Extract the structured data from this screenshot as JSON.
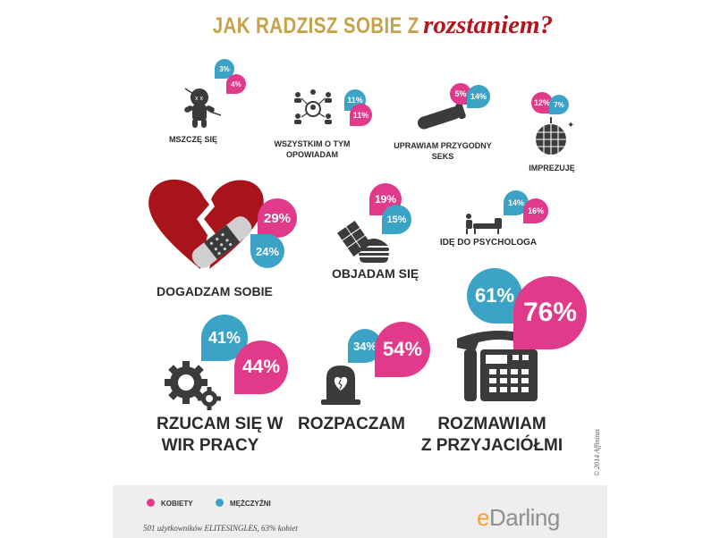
{
  "title": {
    "part1": "JAK RADZISZ SOBIE Z",
    "part2": "rozstaniem?"
  },
  "colors": {
    "women": "#e23a8a",
    "men": "#3ba3c6",
    "title_gold": "#c8a24a",
    "title_red": "#b3151c",
    "icon_dark": "#3b3b3b",
    "heart_red": "#a9141b"
  },
  "legend": {
    "women_label": "KOBIETY",
    "men_label": "MĘŻCZYŹNI"
  },
  "note": "501 użytkowników ELITESINGLES, 63% kobiet",
  "brand": {
    "e": "e",
    "rest": "Darling"
  },
  "copyright": "© 2014 Affinitas",
  "chart_data": {
    "type": "bar",
    "title": "JAK RADZISZ SOBIE Z rozstaniem?",
    "categories": [
      "MSZCZĘ SIĘ",
      "WSZYSTKIM O TYM OPOWIADAM",
      "UPRAWIAM PRZYGODNY SEKS",
      "IMPREZUJĘ",
      "DOGADZAM SOBIE",
      "OBJADAM SIĘ",
      "IDĘ DO PSYCHOLOGA",
      "RZUCAM SIĘ W WIR PRACY",
      "ROZPACZAM",
      "ROZMAWIAM Z PRZYJACIÓŁMI"
    ],
    "series": [
      {
        "name": "KOBIETY",
        "values": [
          4,
          11,
          5,
          12,
          29,
          19,
          16,
          44,
          54,
          76
        ]
      },
      {
        "name": "MĘŻCZYŹNI",
        "values": [
          3,
          11,
          14,
          7,
          24,
          15,
          14,
          41,
          34,
          61
        ]
      }
    ],
    "unit": "%"
  },
  "items": [
    {
      "label_lines": [
        "MSZCZĘ SIĘ"
      ],
      "women": "4%",
      "men": "3%",
      "icon": "voodoo-doll-icon"
    },
    {
      "label_lines": [
        "WSZYSTKIM O TYM",
        "OPOWIADAM"
      ],
      "women": "11%",
      "men": "11%",
      "icon": "people-network-icon"
    },
    {
      "label_lines": [
        "UPRAWIAM PRZYGODNY",
        "SEKS"
      ],
      "women": "5%",
      "men": "14%",
      "icon": "condom-icon"
    },
    {
      "label_lines": [
        "IMPREZUJĘ"
      ],
      "women": "12%",
      "men": "7%",
      "icon": "disco-ball-icon"
    },
    {
      "label_lines": [
        "DOGADZAM SOBIE"
      ],
      "women": "29%",
      "men": "24%",
      "icon": "broken-heart-icon"
    },
    {
      "label_lines": [
        "OBJADAM SIĘ"
      ],
      "women": "19%",
      "men": "15%",
      "icon": "burger-chocolate-icon"
    },
    {
      "label_lines": [
        "IDĘ DO PSYCHOLOGA"
      ],
      "women": "16%",
      "men": "14%",
      "icon": "therapy-couch-icon"
    },
    {
      "label_lines": [
        "RZUCAM SIĘ W",
        "WIR PRACY"
      ],
      "women": "44%",
      "men": "41%",
      "icon": "gears-icon"
    },
    {
      "label_lines": [
        "ROZPACZAM"
      ],
      "women": "54%",
      "men": "34%",
      "icon": "gravestone-icon"
    },
    {
      "label_lines": [
        "ROZMAWIAM",
        "Z PRZYJACIÓŁMI"
      ],
      "women": "76%",
      "men": "61%",
      "icon": "telephone-icon"
    }
  ]
}
